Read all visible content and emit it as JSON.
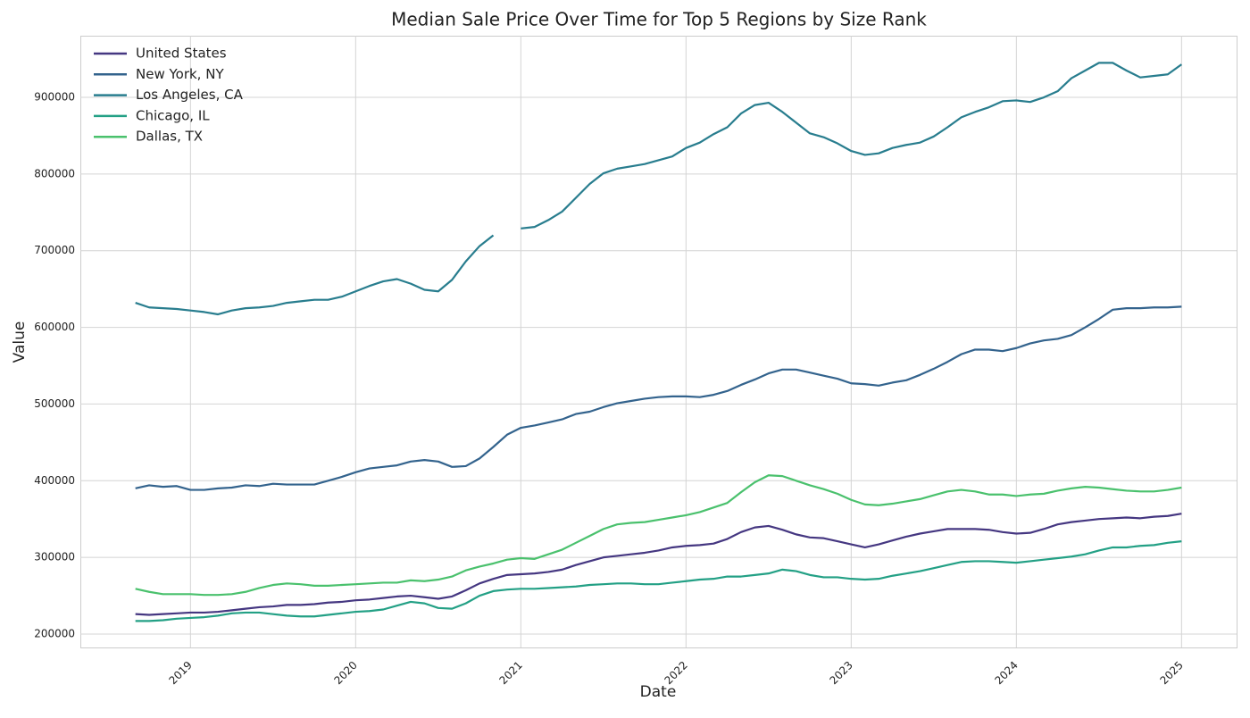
{
  "chart_data": {
    "type": "line",
    "title": "Median Sale Price Over Time for Top 5 Regions by Size Rank",
    "x_label": "Date",
    "y_label": "Value",
    "x": [
      "2018-09",
      "2018-10",
      "2018-11",
      "2018-12",
      "2019-01",
      "2019-02",
      "2019-03",
      "2019-04",
      "2019-05",
      "2019-06",
      "2019-07",
      "2019-08",
      "2019-09",
      "2019-10",
      "2019-11",
      "2019-12",
      "2020-01",
      "2020-02",
      "2020-03",
      "2020-04",
      "2020-05",
      "2020-06",
      "2020-07",
      "2020-08",
      "2020-09",
      "2020-10",
      "2020-11",
      "2020-12",
      "2021-01",
      "2021-02",
      "2021-03",
      "2021-04",
      "2021-05",
      "2021-06",
      "2021-07",
      "2021-08",
      "2021-09",
      "2021-10",
      "2021-11",
      "2021-12",
      "2022-01",
      "2022-02",
      "2022-03",
      "2022-04",
      "2022-05",
      "2022-06",
      "2022-07",
      "2022-08",
      "2022-09",
      "2022-10",
      "2022-11",
      "2022-12",
      "2023-01",
      "2023-02",
      "2023-03",
      "2023-04",
      "2023-05",
      "2023-06",
      "2023-07",
      "2023-08",
      "2023-09",
      "2023-10",
      "2023-11",
      "2023-12",
      "2024-01",
      "2024-02",
      "2024-03",
      "2024-04",
      "2024-05",
      "2024-06",
      "2024-07",
      "2024-08",
      "2024-09",
      "2024-10",
      "2024-11",
      "2024-12",
      "2025-01"
    ],
    "xlim": [
      "2018-05",
      "2025-05"
    ],
    "xticks": [
      2019,
      2020,
      2021,
      2022,
      2023,
      2024,
      2025
    ],
    "ylim": [
      182500,
      980400
    ],
    "yticks": [
      200000,
      300000,
      400000,
      500000,
      600000,
      700000,
      800000,
      900000
    ],
    "grid": true,
    "legend": "upper left",
    "series": [
      {
        "name": "United States",
        "color": "#453781",
        "values": [
          226000,
          225000,
          226000,
          227000,
          228000,
          228000,
          229000,
          231000,
          233000,
          235000,
          236000,
          238000,
          238000,
          239000,
          241000,
          242000,
          244000,
          245000,
          247000,
          249000,
          250000,
          248000,
          246000,
          249000,
          257000,
          266000,
          272000,
          277000,
          278000,
          279000,
          281000,
          284000,
          290000,
          295000,
          300000,
          302000,
          304000,
          306000,
          309000,
          313000,
          315000,
          316000,
          318000,
          324000,
          333000,
          339000,
          341000,
          336000,
          330000,
          326000,
          325000,
          321000,
          317000,
          313000,
          317000,
          322000,
          327000,
          331000,
          334000,
          337000,
          337000,
          337000,
          336000,
          333000,
          331000,
          332000,
          337000,
          343000,
          346000,
          348000,
          350000,
          351000,
          352000,
          351000,
          353000,
          354000,
          357000
        ]
      },
      {
        "name": "New York, NY",
        "color": "#33638d",
        "values": [
          390000,
          394000,
          392000,
          393000,
          388000,
          388000,
          390000,
          391000,
          394000,
          393000,
          396000,
          395000,
          395000,
          395000,
          400000,
          405000,
          411000,
          416000,
          418000,
          420000,
          425000,
          427000,
          425000,
          418000,
          419000,
          429000,
          444000,
          460000,
          469000,
          472000,
          476000,
          480000,
          487000,
          490000,
          496000,
          501000,
          504000,
          507000,
          509000,
          510000,
          510000,
          509000,
          512000,
          517000,
          525000,
          532000,
          540000,
          545000,
          545000,
          541000,
          537000,
          533000,
          527000,
          526000,
          524000,
          528000,
          531000,
          538000,
          546000,
          555000,
          565000,
          571000,
          571000,
          569000,
          573000,
          579000,
          583000,
          585000,
          590000,
          600000,
          611000,
          623000,
          625000,
          625000,
          626000,
          626000,
          627000
        ]
      },
      {
        "name": "Los Angeles, CA",
        "color": "#287d8e",
        "values": [
          632000,
          626000,
          625000,
          624000,
          622000,
          620000,
          617000,
          622000,
          625000,
          626000,
          628000,
          632000,
          634000,
          636000,
          636000,
          640000,
          647000,
          654000,
          660000,
          663000,
          657000,
          649000,
          647000,
          662000,
          686000,
          706000,
          720000,
          null,
          729000,
          731000,
          740000,
          751000,
          769000,
          787000,
          801000,
          807000,
          810000,
          813000,
          818000,
          823000,
          834000,
          841000,
          852000,
          861000,
          879000,
          890000,
          893000,
          881000,
          867000,
          853000,
          848000,
          840000,
          830000,
          825000,
          827000,
          834000,
          838000,
          841000,
          849000,
          861000,
          874000,
          881000,
          887000,
          895000,
          896000,
          894000,
          900000,
          908000,
          925000,
          935000,
          945000,
          945000,
          935000,
          926000,
          928000,
          930000,
          943000
        ]
      },
      {
        "name": "Chicago, IL",
        "color": "#23a085",
        "values": [
          217000,
          217000,
          218000,
          220000,
          221000,
          222000,
          224000,
          227000,
          228000,
          228000,
          226000,
          224000,
          223000,
          223000,
          225000,
          227000,
          229000,
          230000,
          232000,
          237000,
          242000,
          240000,
          234000,
          233000,
          240000,
          250000,
          256000,
          258000,
          259000,
          259000,
          260000,
          261000,
          262000,
          264000,
          265000,
          266000,
          266000,
          265000,
          265000,
          267000,
          269000,
          271000,
          272000,
          275000,
          275000,
          277000,
          279000,
          284000,
          282000,
          277000,
          274000,
          274000,
          272000,
          271000,
          272000,
          276000,
          279000,
          282000,
          286000,
          290000,
          294000,
          295000,
          295000,
          294000,
          293000,
          295000,
          297000,
          299000,
          301000,
          304000,
          309000,
          313000,
          313000,
          315000,
          316000,
          319000,
          321000
        ]
      },
      {
        "name": "Dallas, TX",
        "color": "#4ac16d",
        "values": [
          259000,
          255000,
          252000,
          252000,
          252000,
          251000,
          251000,
          252000,
          255000,
          260000,
          264000,
          266000,
          265000,
          263000,
          263000,
          264000,
          265000,
          266000,
          267000,
          267000,
          270000,
          269000,
          271000,
          275000,
          283000,
          288000,
          292000,
          297000,
          299000,
          298000,
          304000,
          310000,
          319000,
          328000,
          337000,
          343000,
          345000,
          346000,
          349000,
          352000,
          355000,
          359000,
          365000,
          371000,
          385000,
          398000,
          407000,
          406000,
          400000,
          394000,
          389000,
          383000,
          375000,
          369000,
          368000,
          370000,
          373000,
          376000,
          381000,
          386000,
          388000,
          386000,
          382000,
          382000,
          380000,
          382000,
          383000,
          387000,
          390000,
          392000,
          391000,
          389000,
          387000,
          386000,
          386000,
          388000,
          391000
        ]
      }
    ]
  }
}
